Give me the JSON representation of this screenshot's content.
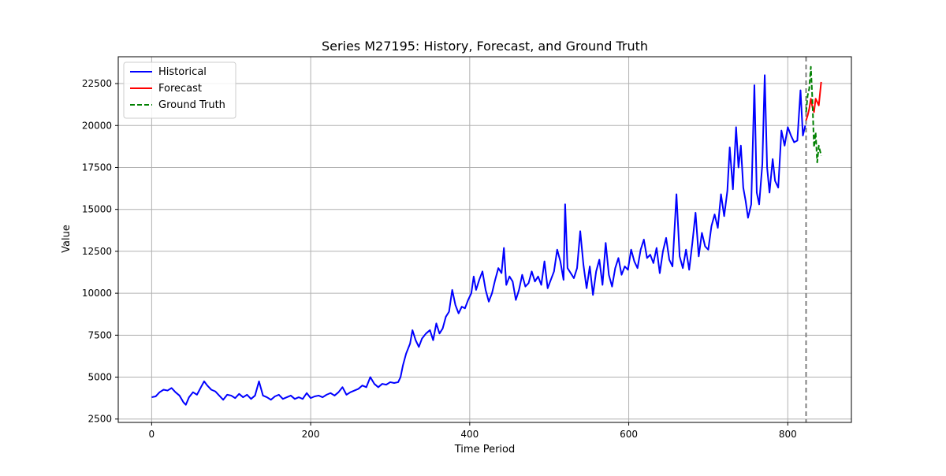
{
  "chart_data": {
    "type": "line",
    "title": "Series M27195: History, Forecast, and Ground Truth",
    "xlabel": "Time Period",
    "ylabel": "Value",
    "xlim": [
      -42,
      880
    ],
    "ylim": [
      2300,
      24100
    ],
    "xticks": [
      0,
      200,
      400,
      600,
      800
    ],
    "yticks": [
      2500,
      5000,
      7500,
      10000,
      12500,
      15000,
      17500,
      20000,
      22500
    ],
    "grid": true,
    "legend_position": "upper-left",
    "forecast_start": 823,
    "series": [
      {
        "name": "Historical",
        "color": "#0000ff",
        "style": "solid",
        "points": [
          [
            0,
            3800
          ],
          [
            5,
            3850
          ],
          [
            10,
            4100
          ],
          [
            15,
            4250
          ],
          [
            20,
            4200
          ],
          [
            25,
            4350
          ],
          [
            30,
            4100
          ],
          [
            35,
            3900
          ],
          [
            40,
            3500
          ],
          [
            43,
            3350
          ],
          [
            47,
            3800
          ],
          [
            52,
            4100
          ],
          [
            57,
            3950
          ],
          [
            62,
            4400
          ],
          [
            66,
            4750
          ],
          [
            70,
            4500
          ],
          [
            75,
            4250
          ],
          [
            80,
            4150
          ],
          [
            85,
            3900
          ],
          [
            90,
            3650
          ],
          [
            95,
            3950
          ],
          [
            100,
            3900
          ],
          [
            105,
            3750
          ],
          [
            110,
            4000
          ],
          [
            115,
            3800
          ],
          [
            120,
            3950
          ],
          [
            125,
            3700
          ],
          [
            130,
            3900
          ],
          [
            135,
            4750
          ],
          [
            140,
            3900
          ],
          [
            145,
            3800
          ],
          [
            150,
            3650
          ],
          [
            155,
            3850
          ],
          [
            160,
            3950
          ],
          [
            165,
            3700
          ],
          [
            170,
            3800
          ],
          [
            175,
            3900
          ],
          [
            180,
            3700
          ],
          [
            185,
            3800
          ],
          [
            190,
            3700
          ],
          [
            195,
            4050
          ],
          [
            200,
            3750
          ],
          [
            205,
            3850
          ],
          [
            210,
            3900
          ],
          [
            215,
            3800
          ],
          [
            220,
            3950
          ],
          [
            225,
            4050
          ],
          [
            230,
            3900
          ],
          [
            235,
            4100
          ],
          [
            240,
            4400
          ],
          [
            245,
            3950
          ],
          [
            250,
            4100
          ],
          [
            255,
            4200
          ],
          [
            260,
            4300
          ],
          [
            265,
            4500
          ],
          [
            270,
            4400
          ],
          [
            275,
            5000
          ],
          [
            280,
            4600
          ],
          [
            285,
            4400
          ],
          [
            290,
            4600
          ],
          [
            295,
            4550
          ],
          [
            300,
            4700
          ],
          [
            305,
            4650
          ],
          [
            310,
            4700
          ],
          [
            313,
            5000
          ],
          [
            316,
            5700
          ],
          [
            320,
            6400
          ],
          [
            325,
            7000
          ],
          [
            328,
            7800
          ],
          [
            332,
            7200
          ],
          [
            336,
            6800
          ],
          [
            340,
            7300
          ],
          [
            345,
            7600
          ],
          [
            350,
            7800
          ],
          [
            354,
            7200
          ],
          [
            358,
            8200
          ],
          [
            362,
            7600
          ],
          [
            366,
            7900
          ],
          [
            370,
            8600
          ],
          [
            374,
            8900
          ],
          [
            378,
            10200
          ],
          [
            382,
            9300
          ],
          [
            386,
            8800
          ],
          [
            390,
            9200
          ],
          [
            394,
            9100
          ],
          [
            398,
            9600
          ],
          [
            402,
            10000
          ],
          [
            405,
            11000
          ],
          [
            408,
            10200
          ],
          [
            412,
            10800
          ],
          [
            416,
            11300
          ],
          [
            420,
            10200
          ],
          [
            424,
            9500
          ],
          [
            428,
            10000
          ],
          [
            432,
            10800
          ],
          [
            436,
            11500
          ],
          [
            440,
            11200
          ],
          [
            443,
            12700
          ],
          [
            446,
            10500
          ],
          [
            450,
            11000
          ],
          [
            454,
            10700
          ],
          [
            458,
            9600
          ],
          [
            462,
            10200
          ],
          [
            466,
            11100
          ],
          [
            470,
            10400
          ],
          [
            474,
            10600
          ],
          [
            478,
            11300
          ],
          [
            482,
            10700
          ],
          [
            486,
            11000
          ],
          [
            490,
            10500
          ],
          [
            494,
            11900
          ],
          [
            498,
            10300
          ],
          [
            502,
            10800
          ],
          [
            506,
            11300
          ],
          [
            510,
            12600
          ],
          [
            514,
            11900
          ],
          [
            518,
            10800
          ],
          [
            520,
            15300
          ],
          [
            523,
            11500
          ],
          [
            527,
            11200
          ],
          [
            531,
            10900
          ],
          [
            535,
            11500
          ],
          [
            539,
            13700
          ],
          [
            543,
            11700
          ],
          [
            547,
            10300
          ],
          [
            551,
            11600
          ],
          [
            555,
            9900
          ],
          [
            559,
            11300
          ],
          [
            563,
            12000
          ],
          [
            567,
            10500
          ],
          [
            571,
            13000
          ],
          [
            575,
            11100
          ],
          [
            579,
            10400
          ],
          [
            583,
            11500
          ],
          [
            587,
            12100
          ],
          [
            591,
            11100
          ],
          [
            595,
            11600
          ],
          [
            599,
            11400
          ],
          [
            603,
            12600
          ],
          [
            607,
            11900
          ],
          [
            611,
            11500
          ],
          [
            615,
            12600
          ],
          [
            619,
            13200
          ],
          [
            623,
            12100
          ],
          [
            627,
            12300
          ],
          [
            631,
            11800
          ],
          [
            635,
            12700
          ],
          [
            639,
            11200
          ],
          [
            643,
            12500
          ],
          [
            647,
            13300
          ],
          [
            651,
            12000
          ],
          [
            655,
            11600
          ],
          [
            660,
            15900
          ],
          [
            664,
            12200
          ],
          [
            668,
            11500
          ],
          [
            672,
            12600
          ],
          [
            676,
            11400
          ],
          [
            680,
            13000
          ],
          [
            684,
            14800
          ],
          [
            688,
            12200
          ],
          [
            692,
            13600
          ],
          [
            696,
            12800
          ],
          [
            700,
            12600
          ],
          [
            704,
            14000
          ],
          [
            708,
            14700
          ],
          [
            712,
            13900
          ],
          [
            716,
            15900
          ],
          [
            720,
            14600
          ],
          [
            724,
            16100
          ],
          [
            727,
            18700
          ],
          [
            731,
            16200
          ],
          [
            735,
            19900
          ],
          [
            738,
            17500
          ],
          [
            741,
            18800
          ],
          [
            744,
            16300
          ],
          [
            747,
            15500
          ],
          [
            750,
            14500
          ],
          [
            754,
            15300
          ],
          [
            758,
            22400
          ],
          [
            761,
            16000
          ],
          [
            764,
            15300
          ],
          [
            768,
            17700
          ],
          [
            771,
            23000
          ],
          [
            774,
            17500
          ],
          [
            777,
            16000
          ],
          [
            781,
            18000
          ],
          [
            784,
            16700
          ],
          [
            788,
            16300
          ],
          [
            792,
            19700
          ],
          [
            796,
            18800
          ],
          [
            800,
            19900
          ],
          [
            804,
            19400
          ],
          [
            808,
            19000
          ],
          [
            812,
            19100
          ],
          [
            816,
            22100
          ],
          [
            819,
            19400
          ],
          [
            822,
            20000
          ]
        ]
      },
      {
        "name": "Forecast",
        "color": "#ff0000",
        "style": "solid",
        "points": [
          [
            823,
            20300
          ],
          [
            825,
            20600
          ],
          [
            827,
            21000
          ],
          [
            829,
            21600
          ],
          [
            831,
            21100
          ],
          [
            833,
            20800
          ],
          [
            835,
            21600
          ],
          [
            837,
            21400
          ],
          [
            839,
            21200
          ],
          [
            842,
            22600
          ]
        ]
      },
      {
        "name": "Ground Truth",
        "color": "#008000",
        "style": "dashed",
        "points": [
          [
            823,
            20800
          ],
          [
            825,
            21800
          ],
          [
            827,
            22200
          ],
          [
            829,
            23500
          ],
          [
            831,
            21500
          ],
          [
            833,
            18700
          ],
          [
            835,
            19600
          ],
          [
            837,
            17800
          ],
          [
            839,
            18800
          ],
          [
            842,
            18200
          ]
        ]
      }
    ]
  }
}
